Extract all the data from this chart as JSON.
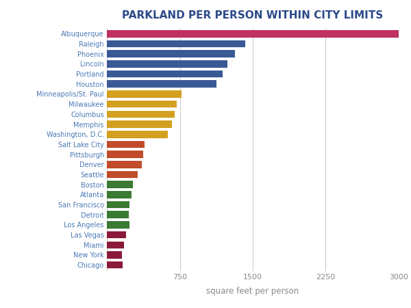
{
  "title": "PARKLAND PER PERSON WITHIN CITY LIMITS",
  "xlabel": "square feet per person",
  "cities": [
    "Albuquerque",
    "Raleigh",
    "Phoenix",
    "Lincoln",
    "Portland",
    "Houston",
    "Minneapolis/St. Paul",
    "Milwaukee",
    "Columbus",
    "Memphis",
    "Washington, D.C.",
    "Salt Lake City",
    "Pittsburgh",
    "Denver",
    "Seattle",
    "Boston",
    "Atlanta",
    "San Francisco",
    "Detroit",
    "Los Angeles",
    "Las Vegas",
    "Miami",
    "New York",
    "Chicago"
  ],
  "values": [
    3000,
    1420,
    1320,
    1240,
    1190,
    1130,
    770,
    720,
    700,
    670,
    630,
    390,
    370,
    360,
    320,
    270,
    250,
    235,
    225,
    230,
    195,
    175,
    155,
    160
  ],
  "colors": [
    "#c03060",
    "#3a5a96",
    "#3a5a96",
    "#3a5a96",
    "#3a5a96",
    "#3a5a96",
    "#d4a020",
    "#d4a020",
    "#d4a020",
    "#d4a020",
    "#d4a020",
    "#c14b2a",
    "#c14b2a",
    "#c14b2a",
    "#c14b2a",
    "#3a7a32",
    "#3a7a32",
    "#3a7a32",
    "#3a7a32",
    "#3a7a32",
    "#8b1a3a",
    "#8b1a3a",
    "#8b1a3a",
    "#8b1a3a"
  ],
  "xlim": [
    0,
    3000
  ],
  "xticks": [
    0,
    750,
    1500,
    2250,
    3000
  ],
  "background_color": "#ffffff",
  "title_color": "#2c4a8a",
  "label_color": "#4a7ab5",
  "grid_color": "#cccccc"
}
